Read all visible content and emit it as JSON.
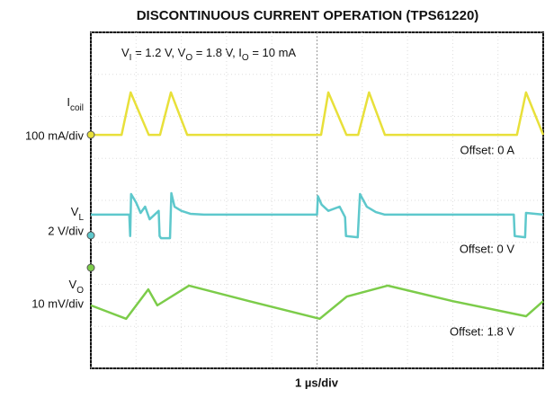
{
  "chart_data": {
    "type": "line",
    "title": "DISCONTINUOUS CURRENT OPERATION (TPS61220)",
    "conditions": [
      "V",
      "I",
      " = 1.2 V, V",
      "O",
      " = 1.8 V, I",
      "O",
      " = 10 mA"
    ],
    "x_label": "1 µs/div",
    "xlim": [
      0,
      10
    ],
    "ylim": [
      0,
      8
    ],
    "xticks": [
      0,
      1,
      2,
      3,
      4,
      5,
      6,
      7,
      8,
      9,
      10
    ],
    "yticks": [
      0,
      1,
      2,
      3,
      4,
      5,
      6,
      7,
      8
    ],
    "grid": true,
    "series": [
      {
        "name": "I",
        "name_sub": "coil",
        "scale": "100 mA/div",
        "offset": "Offset: 0 A",
        "color": "#e8e03a",
        "x": [
          0,
          0.68,
          0.88,
          1.28,
          1.53,
          1.77,
          2.13,
          5.09,
          5.25,
          5.65,
          5.91,
          6.15,
          6.5,
          9.42,
          9.62,
          10
        ],
        "values": [
          5.56,
          5.56,
          6.57,
          5.56,
          5.56,
          6.57,
          5.56,
          5.56,
          6.57,
          5.56,
          5.56,
          6.57,
          5.56,
          5.56,
          6.57,
          5.56
        ]
      },
      {
        "name": "V",
        "name_sub": "L",
        "scale": "2 V/div",
        "offset": "Offset: 0 V",
        "color": "#5ec8cc",
        "x": [
          0,
          0.85,
          0.87,
          0.89,
          1.0,
          1.1,
          1.2,
          1.3,
          1.5,
          1.52,
          1.55,
          1.75,
          1.78,
          1.85,
          2.0,
          2.2,
          2.5,
          5.0,
          5.02,
          5.1,
          5.25,
          5.5,
          5.62,
          5.64,
          5.9,
          5.95,
          6.1,
          6.3,
          6.5,
          9.35,
          9.37,
          9.6,
          9.62,
          10
        ],
        "values": [
          3.66,
          3.66,
          3.15,
          4.15,
          3.95,
          3.7,
          3.85,
          3.55,
          3.75,
          3.15,
          3.1,
          3.1,
          4.17,
          3.85,
          3.75,
          3.68,
          3.66,
          3.66,
          4.1,
          3.9,
          3.75,
          3.85,
          3.6,
          3.15,
          3.12,
          4.15,
          3.85,
          3.72,
          3.66,
          3.66,
          3.15,
          3.12,
          3.7,
          3.66
        ]
      },
      {
        "name": "V",
        "name_sub": "O",
        "scale": "10 mV/div",
        "offset": "Offset: 1.8 V",
        "color": "#7ccc4a",
        "x": [
          0,
          0.78,
          1.27,
          1.47,
          2.17,
          3.5,
          5.06,
          5.66,
          6.56,
          8.0,
          9.62,
          10
        ],
        "values": [
          1.5,
          1.18,
          1.88,
          1.5,
          1.97,
          1.6,
          1.18,
          1.71,
          1.97,
          1.6,
          1.24,
          1.6
        ]
      }
    ]
  }
}
